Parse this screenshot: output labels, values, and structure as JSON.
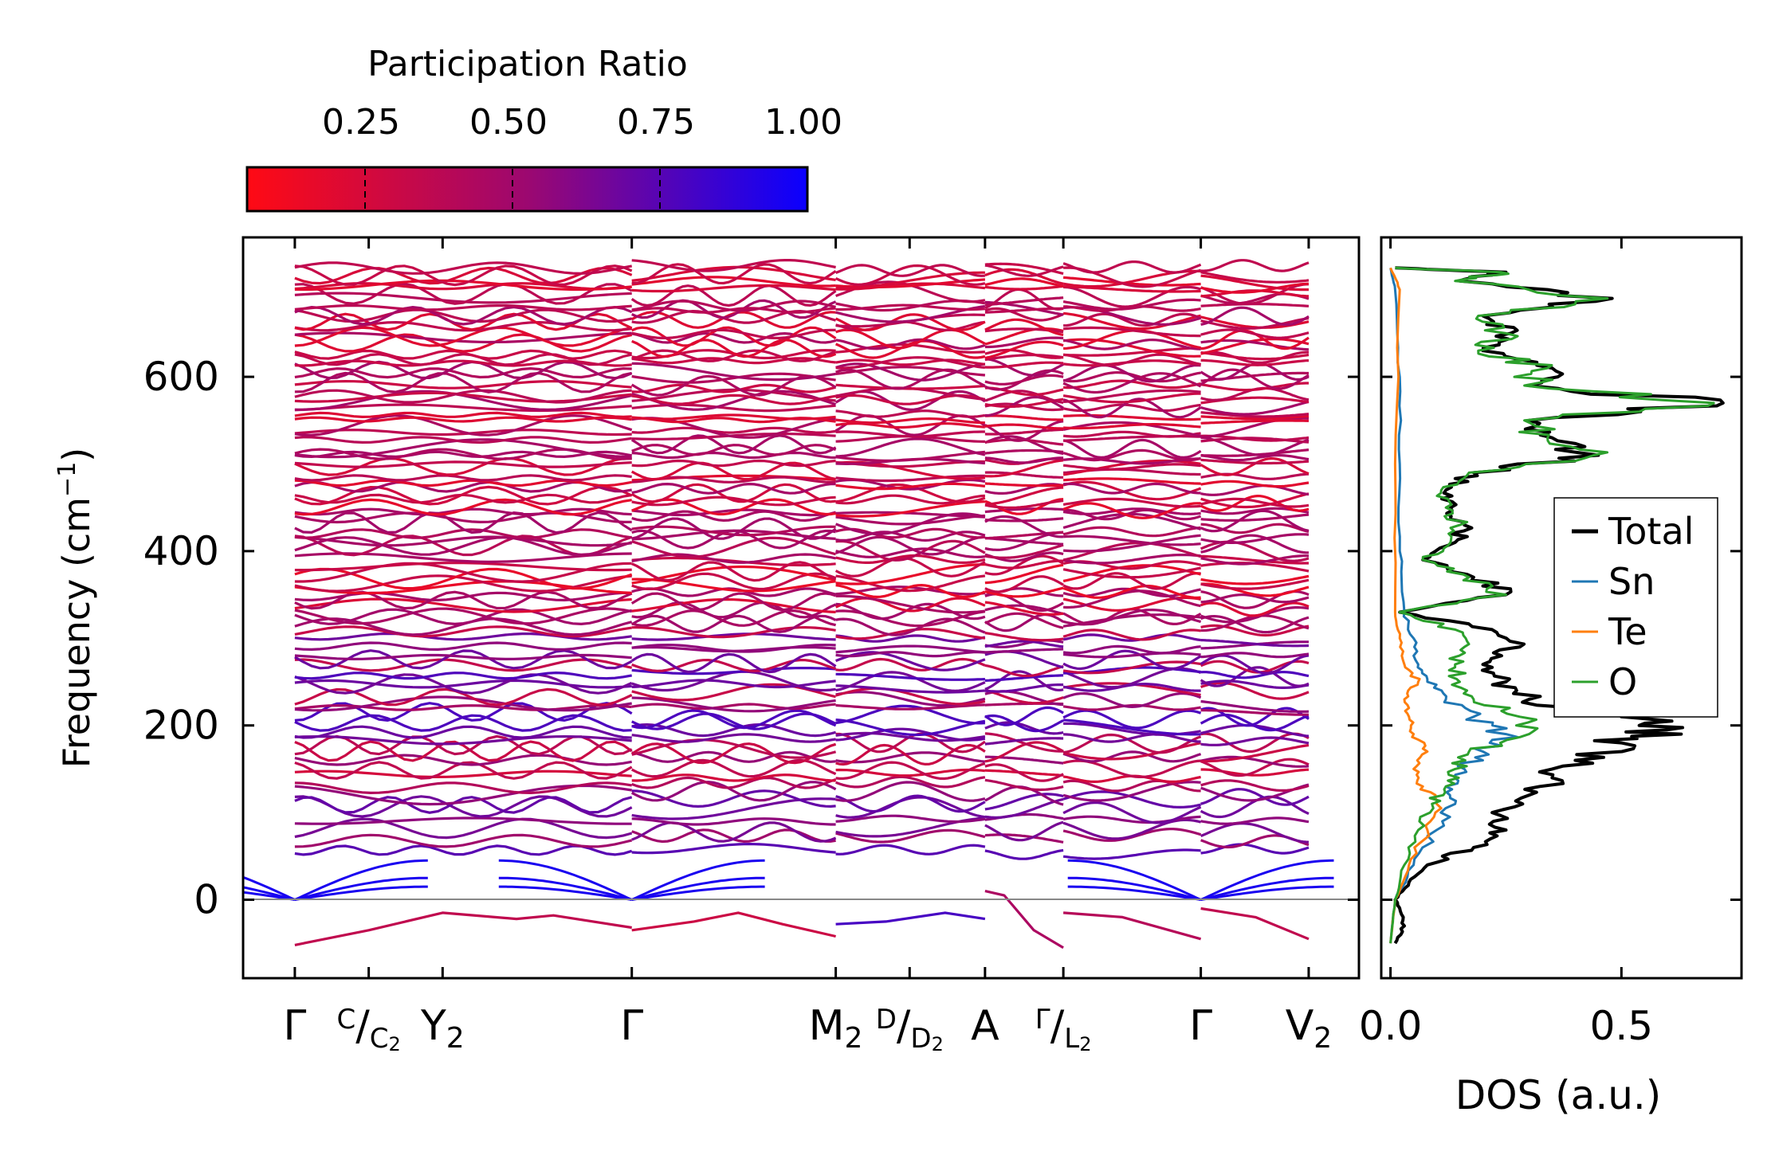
{
  "chart_data": [
    {
      "type": "line",
      "subtype": "phonon-band-structure",
      "ylabel_base": "Frequency (cm",
      "ylabel_exp": "−1",
      "ylabel_close": ")",
      "ylim": [
        -90,
        760
      ],
      "yticks": [
        0,
        200,
        400,
        600
      ],
      "colorbar": {
        "title": "Participation Ratio",
        "ticks": [
          "0.25",
          "0.50",
          "0.75",
          "1.00"
        ],
        "tick_values": [
          0.25,
          0.5,
          0.75,
          1.0
        ],
        "range": [
          0.05,
          1.0
        ],
        "color_low": "#ff0a14",
        "color_mid": "#9c0870",
        "color_high": "#0a00ff"
      },
      "kpath": {
        "ticks": [
          {
            "pos": 0.0,
            "main": "Γ",
            "sup": "",
            "sub": ""
          },
          {
            "pos": 0.5,
            "main": "C",
            "sup": "",
            "sub": "",
            "frac_den": "C",
            "frac_den_sub": "2"
          },
          {
            "pos": 1.0,
            "main": "Y",
            "sup": "",
            "sub": "2"
          },
          {
            "pos": 2.28,
            "main": "Γ",
            "sup": "",
            "sub": ""
          },
          {
            "pos": 3.66,
            "main": "M",
            "sup": "",
            "sub": "2"
          },
          {
            "pos": 4.16,
            "main": "D",
            "sup": "",
            "sub": "",
            "frac_den": "D",
            "frac_den_sub": "2"
          },
          {
            "pos": 4.67,
            "main": "A",
            "sup": "",
            "sub": ""
          },
          {
            "pos": 5.2,
            "main": "Γ",
            "sup": "",
            "sub": "",
            "frac_den": "L",
            "frac_den_sub": "2"
          },
          {
            "pos": 6.13,
            "main": "Γ",
            "sup": "",
            "sub": ""
          },
          {
            "pos": 6.86,
            "main": "V",
            "sup": "",
            "sub": "2"
          }
        ],
        "range": [
          -0.35,
          7.2
        ],
        "segments": [
          [
            0.0,
            2.28
          ],
          [
            2.28,
            3.66
          ],
          [
            3.66,
            4.67
          ],
          [
            4.67,
            5.2
          ],
          [
            5.2,
            6.13
          ],
          [
            6.13,
            6.86
          ]
        ],
        "zero_line": 0
      },
      "bands": {
        "imaginary_modes": [
          {
            "points": [
              [
                0.0,
                -52
              ],
              [
                0.5,
                -35
              ],
              [
                1.0,
                -15
              ],
              [
                1.5,
                -22
              ],
              [
                1.75,
                -18
              ],
              [
                2.28,
                -32
              ]
            ],
            "pr": 0.35
          },
          {
            "points": [
              [
                2.28,
                -35
              ],
              [
                2.7,
                -25
              ],
              [
                3.0,
                -15
              ],
              [
                3.3,
                -28
              ],
              [
                3.66,
                -42
              ]
            ],
            "pr": 0.3
          },
          {
            "points": [
              [
                3.66,
                -28
              ],
              [
                4.0,
                -25
              ],
              [
                4.4,
                -15
              ],
              [
                4.67,
                -22
              ]
            ],
            "pr": 0.8
          },
          {
            "points": [
              [
                4.67,
                10
              ],
              [
                4.8,
                5
              ],
              [
                5.0,
                -35
              ],
              [
                5.2,
                -55
              ]
            ],
            "pr": 0.45
          },
          {
            "points": [
              [
                5.2,
                -15
              ],
              [
                5.6,
                -20
              ],
              [
                6.13,
                -45
              ]
            ],
            "pr": 0.4
          },
          {
            "points": [
              [
                6.13,
                -10
              ],
              [
                6.5,
                -20
              ],
              [
                6.86,
                -45
              ]
            ],
            "pr": 0.35
          }
        ],
        "acoustic_pr": 0.95,
        "optical_freq_min": 55,
        "optical_freq_max": 725,
        "band_count": 90
      },
      "xlabel": "",
      "note": "Dense set of optical phonon branches colored by participation ratio"
    },
    {
      "type": "line",
      "subtype": "density-of-states",
      "xlabel": "DOS (a.u.)",
      "xlim": [
        -0.02,
        0.76
      ],
      "xticks": [
        "0.0",
        "0.5"
      ],
      "xtick_values": [
        0.0,
        0.5
      ],
      "ylim": [
        -90,
        760
      ],
      "legend": {
        "placement": "center-right",
        "entries": [
          {
            "label": "Total",
            "color": "#000000"
          },
          {
            "label": "Sn",
            "color": "#1f77b4"
          },
          {
            "label": "Te",
            "color": "#ff7f0e"
          },
          {
            "label": "O",
            "color": "#2ca02c"
          }
        ]
      },
      "series": [
        {
          "name": "Total",
          "color": "#000000",
          "points": [
            [
              -50,
              0.01
            ],
            [
              -30,
              0.03
            ],
            [
              -10,
              0.02
            ],
            [
              0,
              0.01
            ],
            [
              20,
              0.04
            ],
            [
              40,
              0.08
            ],
            [
              60,
              0.18
            ],
            [
              80,
              0.25
            ],
            [
              100,
              0.22
            ],
            [
              120,
              0.3
            ],
            [
              140,
              0.35
            ],
            [
              160,
              0.4
            ],
            [
              180,
              0.5
            ],
            [
              195,
              0.6
            ],
            [
              210,
              0.5
            ],
            [
              230,
              0.3
            ],
            [
              250,
              0.25
            ],
            [
              270,
              0.2
            ],
            [
              290,
              0.28
            ],
            [
              310,
              0.22
            ],
            [
              330,
              0.02
            ],
            [
              350,
              0.25
            ],
            [
              370,
              0.18
            ],
            [
              390,
              0.07
            ],
            [
              410,
              0.14
            ],
            [
              430,
              0.16
            ],
            [
              450,
              0.13
            ],
            [
              470,
              0.12
            ],
            [
              490,
              0.18
            ],
            [
              510,
              0.45
            ],
            [
              530,
              0.35
            ],
            [
              550,
              0.3
            ],
            [
              570,
              0.72
            ],
            [
              590,
              0.3
            ],
            [
              610,
              0.35
            ],
            [
              630,
              0.2
            ],
            [
              650,
              0.26
            ],
            [
              670,
              0.2
            ],
            [
              690,
              0.48
            ],
            [
              710,
              0.15
            ],
            [
              720,
              0.25
            ],
            [
              725,
              0.01
            ]
          ]
        },
        {
          "name": "Sn",
          "color": "#1f77b4",
          "points": [
            [
              -50,
              0.0
            ],
            [
              0,
              0.01
            ],
            [
              40,
              0.05
            ],
            [
              80,
              0.1
            ],
            [
              110,
              0.14
            ],
            [
              130,
              0.12
            ],
            [
              150,
              0.16
            ],
            [
              170,
              0.2
            ],
            [
              190,
              0.25
            ],
            [
              210,
              0.18
            ],
            [
              230,
              0.12
            ],
            [
              250,
              0.08
            ],
            [
              270,
              0.06
            ],
            [
              300,
              0.05
            ],
            [
              330,
              0.03
            ],
            [
              400,
              0.02
            ],
            [
              500,
              0.02
            ],
            [
              600,
              0.02
            ],
            [
              700,
              0.01
            ],
            [
              725,
              0.0
            ]
          ]
        },
        {
          "name": "Te",
          "color": "#ff7f0e",
          "points": [
            [
              -50,
              0.0
            ],
            [
              0,
              0.01
            ],
            [
              40,
              0.04
            ],
            [
              80,
              0.08
            ],
            [
              110,
              0.1
            ],
            [
              130,
              0.07
            ],
            [
              150,
              0.05
            ],
            [
              170,
              0.08
            ],
            [
              190,
              0.05
            ],
            [
              210,
              0.04
            ],
            [
              230,
              0.03
            ],
            [
              250,
              0.06
            ],
            [
              270,
              0.03
            ],
            [
              300,
              0.02
            ],
            [
              330,
              0.01
            ],
            [
              500,
              0.01
            ],
            [
              700,
              0.02
            ],
            [
              725,
              0.0
            ]
          ]
        },
        {
          "name": "O",
          "color": "#2ca02c",
          "points": [
            [
              -50,
              0.0
            ],
            [
              0,
              0.01
            ],
            [
              40,
              0.03
            ],
            [
              80,
              0.06
            ],
            [
              110,
              0.09
            ],
            [
              130,
              0.12
            ],
            [
              150,
              0.14
            ],
            [
              170,
              0.17
            ],
            [
              190,
              0.3
            ],
            [
              210,
              0.28
            ],
            [
              230,
              0.18
            ],
            [
              250,
              0.15
            ],
            [
              270,
              0.14
            ],
            [
              290,
              0.16
            ],
            [
              310,
              0.14
            ],
            [
              330,
              0.02
            ],
            [
              350,
              0.25
            ],
            [
              370,
              0.17
            ],
            [
              390,
              0.07
            ],
            [
              410,
              0.13
            ],
            [
              430,
              0.15
            ],
            [
              450,
              0.12
            ],
            [
              470,
              0.11
            ],
            [
              490,
              0.17
            ],
            [
              510,
              0.44
            ],
            [
              530,
              0.34
            ],
            [
              550,
              0.29
            ],
            [
              570,
              0.7
            ],
            [
              590,
              0.29
            ],
            [
              610,
              0.34
            ],
            [
              630,
              0.19
            ],
            [
              650,
              0.25
            ],
            [
              670,
              0.19
            ],
            [
              690,
              0.47
            ],
            [
              710,
              0.14
            ],
            [
              720,
              0.24
            ],
            [
              725,
              0.01
            ]
          ]
        }
      ]
    }
  ]
}
